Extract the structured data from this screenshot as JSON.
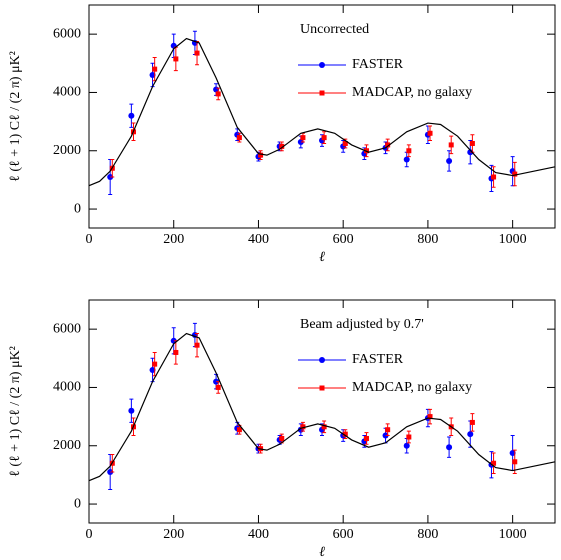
{
  "chart_data": [
    {
      "type": "scatter",
      "annotation": "Uncorrected",
      "xlabel": "ℓ",
      "ylabel": "ℓ (ℓ + 1) Cℓ / (2 π)  μK²",
      "xlim": [
        0,
        1100
      ],
      "ylim": [
        -650,
        7000
      ],
      "xticks": [
        0,
        200,
        400,
        600,
        800,
        1000
      ],
      "yticks": [
        0,
        2000,
        4000,
        6000
      ],
      "series": [
        {
          "name": "FASTER",
          "color": "#0000ff",
          "marker": "circle",
          "x": [
            50,
            100,
            150,
            200,
            250,
            300,
            350,
            400,
            450,
            500,
            550,
            600,
            650,
            700,
            750,
            800,
            850,
            900,
            950,
            1000
          ],
          "values": [
            1100,
            3200,
            4600,
            5600,
            5700,
            4100,
            2550,
            1800,
            2150,
            2300,
            2350,
            2150,
            1900,
            2100,
            1700,
            2550,
            1650,
            1950,
            1050,
            1300
          ],
          "errors": [
            600,
            400,
            400,
            400,
            400,
            200,
            200,
            150,
            150,
            200,
            200,
            200,
            200,
            200,
            250,
            300,
            350,
            400,
            450,
            500
          ]
        },
        {
          "name": "MADCAP, no galaxy",
          "color": "#ff0000",
          "marker": "square",
          "x": [
            55,
            105,
            155,
            205,
            255,
            305,
            355,
            405,
            455,
            505,
            555,
            605,
            655,
            705,
            755,
            805,
            855,
            905,
            955,
            1005
          ],
          "values": [
            1400,
            2650,
            4800,
            5150,
            5350,
            3950,
            2450,
            1850,
            2150,
            2450,
            2450,
            2250,
            2000,
            2200,
            2000,
            2600,
            2200,
            2250,
            1100,
            1200
          ],
          "errors": [
            300,
            300,
            400,
            400,
            400,
            200,
            150,
            150,
            150,
            150,
            200,
            150,
            200,
            200,
            200,
            250,
            300,
            300,
            350,
            400
          ]
        },
        {
          "color": "#000000",
          "x": [
            0,
            25,
            50,
            100,
            150,
            200,
            230,
            260,
            300,
            350,
            400,
            420,
            450,
            500,
            540,
            580,
            620,
            660,
            700,
            750,
            800,
            830,
            870,
            920,
            960,
            1000,
            1050,
            1100
          ],
          "values": [
            800,
            950,
            1300,
            2500,
            4200,
            5500,
            5850,
            5700,
            4500,
            2800,
            1900,
            1850,
            2050,
            2600,
            2750,
            2600,
            2200,
            1950,
            2100,
            2650,
            2950,
            2900,
            2500,
            1700,
            1250,
            1150,
            1300,
            1450
          ]
        }
      ]
    },
    {
      "type": "scatter",
      "annotation": "Beam adjusted by 0.7'",
      "xlabel": "ℓ",
      "ylabel": "ℓ (ℓ + 1) Cℓ / (2 π)  μK²",
      "xlim": [
        0,
        1100
      ],
      "ylim": [
        -650,
        7000
      ],
      "xticks": [
        0,
        200,
        400,
        600,
        800,
        1000
      ],
      "yticks": [
        0,
        2000,
        4000,
        6000
      ],
      "series": [
        {
          "name": "FASTER",
          "color": "#0000ff",
          "marker": "circle",
          "x": [
            50,
            100,
            150,
            200,
            250,
            300,
            350,
            400,
            450,
            500,
            550,
            600,
            650,
            700,
            750,
            800,
            850,
            900,
            950,
            1000
          ],
          "values": [
            1100,
            3200,
            4600,
            5600,
            5800,
            4200,
            2600,
            1900,
            2200,
            2550,
            2550,
            2350,
            2150,
            2350,
            2000,
            2950,
            1950,
            2400,
            1350,
            1750
          ],
          "errors": [
            600,
            400,
            400,
            450,
            400,
            250,
            200,
            150,
            150,
            200,
            200,
            200,
            200,
            250,
            250,
            300,
            350,
            450,
            450,
            600
          ]
        },
        {
          "name": "MADCAP, no galaxy",
          "color": "#ff0000",
          "marker": "square",
          "x": [
            55,
            105,
            155,
            205,
            255,
            305,
            355,
            405,
            455,
            505,
            555,
            605,
            655,
            705,
            755,
            805,
            855,
            905,
            955,
            1005
          ],
          "values": [
            1400,
            2650,
            4800,
            5200,
            5450,
            4000,
            2550,
            1900,
            2250,
            2650,
            2650,
            2400,
            2250,
            2550,
            2300,
            3000,
            2650,
            2800,
            1400,
            1450
          ],
          "errors": [
            300,
            300,
            400,
            400,
            400,
            200,
            150,
            150,
            150,
            150,
            200,
            150,
            200,
            200,
            200,
            250,
            300,
            300,
            350,
            400
          ]
        },
        {
          "color": "#000000",
          "x": [
            0,
            25,
            50,
            100,
            150,
            200,
            230,
            260,
            300,
            350,
            400,
            420,
            450,
            500,
            540,
            580,
            620,
            660,
            700,
            750,
            800,
            830,
            870,
            920,
            960,
            1000,
            1050,
            1100
          ],
          "values": [
            800,
            950,
            1300,
            2500,
            4200,
            5500,
            5850,
            5700,
            4500,
            2800,
            1900,
            1850,
            2050,
            2600,
            2750,
            2600,
            2200,
            1950,
            2100,
            2650,
            2950,
            2900,
            2500,
            1700,
            1250,
            1150,
            1300,
            1450
          ]
        }
      ]
    }
  ]
}
